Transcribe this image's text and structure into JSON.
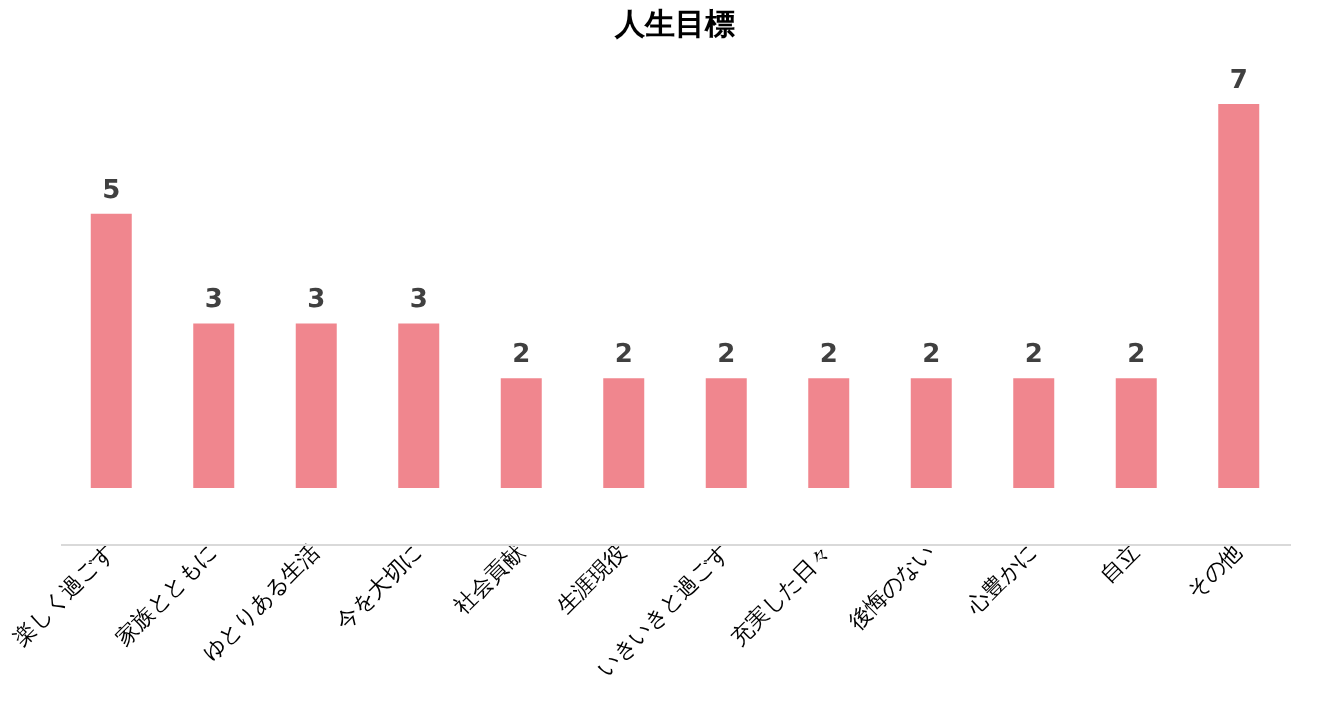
{
  "chart_data": {
    "type": "bar",
    "title": "人生目標",
    "categories": [
      "楽しく過ごす",
      "家族とともに",
      "ゆとりある生活",
      "今を大切に",
      "社会貢献",
      "生涯現役",
      "いきいきと過ごす",
      "充実した日々",
      "後悔のない",
      "心豊かに",
      "自立",
      "その他"
    ],
    "values": [
      5,
      3,
      3,
      3,
      2,
      2,
      2,
      2,
      2,
      2,
      2,
      7
    ],
    "color": "#f0868e",
    "data_labels": true,
    "tick_labels": "x"
  }
}
